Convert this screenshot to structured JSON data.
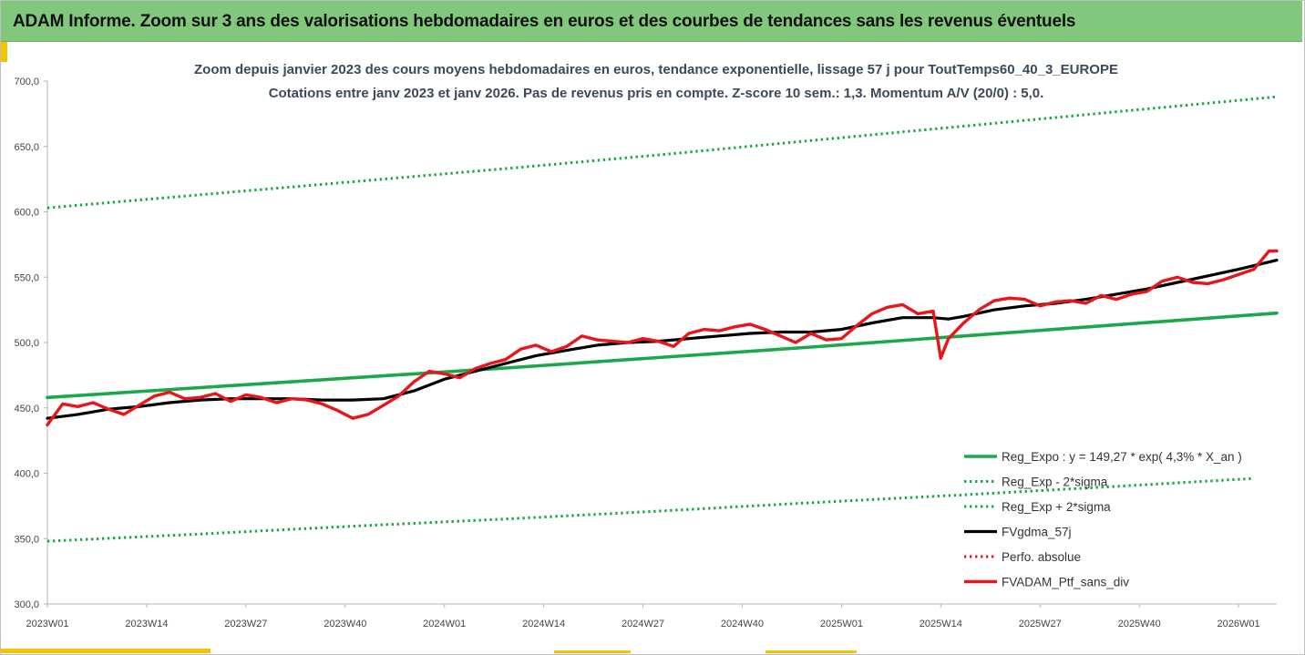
{
  "banner": {
    "title": "ADAM Informe. Zoom sur 3 ans des valorisations hebdomadaires en euros et des courbes de tendances sans les revenus éventuels"
  },
  "colors": {
    "banner_bg": "#82c87c",
    "accent_gold": "#f5c400",
    "reg_green": "#1aa84a",
    "black": "#000000",
    "red": "#e8161b"
  },
  "chart_data": {
    "type": "line",
    "title_line1": "Zoom depuis janvier 2023 des cours moyens hebdomadaires  en euros, tendance exponentielle, lissage 57 j pour ToutTemps60_40_3_EUROPE",
    "title_line2": "Cotations entre janv 2023 et janv 2026. Pas de revenus pris en compte. Z-score 10 sem.: 1,3. Momentum  A/V (20/0) : 5,0.",
    "ylim": [
      300,
      700
    ],
    "yticks": [
      "300,0",
      "350,0",
      "400,0",
      "450,0",
      "500,0",
      "550,0",
      "600,0",
      "650,0",
      "700,0"
    ],
    "ytick_values": [
      300,
      350,
      400,
      450,
      500,
      550,
      600,
      650,
      700
    ],
    "xlim": [
      0,
      161
    ],
    "xticks": [
      "2023W01",
      "2023W14",
      "2023W27",
      "2023W40",
      "2024W01",
      "2024W14",
      "2024W27",
      "2024W40",
      "2025W01",
      "2025W14",
      "2025W27",
      "2025W40",
      "2026W01"
    ],
    "xtick_positions": [
      0,
      13,
      26,
      39,
      52,
      65,
      78,
      91,
      104,
      117,
      130,
      143,
      156
    ],
    "series": [
      {
        "name": "Reg_Expo : y = 149,27 * exp( 4,3% *  X_an )",
        "style": "solid",
        "color": "#1aa84a",
        "x": [
          0,
          20,
          40,
          60,
          80,
          100,
          120,
          140,
          161
        ],
        "values": [
          458,
          465.5,
          473,
          480.5,
          488.5,
          496.5,
          505,
          513.5,
          522.5
        ]
      },
      {
        "name": "Reg_Exp - 2*sigma",
        "style": "dotted",
        "color": "#1aa84a",
        "x": [
          0,
          20,
          40,
          60,
          80,
          100,
          120,
          140,
          158
        ],
        "values": [
          348,
          353.5,
          359.5,
          365,
          371,
          377.5,
          383.5,
          390,
          396
        ]
      },
      {
        "name": "Reg_Exp + 2*sigma",
        "style": "dotted",
        "color": "#1aa84a",
        "x": [
          0,
          20,
          40,
          60,
          80,
          100,
          120,
          140,
          161
        ],
        "values": [
          603,
          613,
          623,
          633,
          643.5,
          654.5,
          665.5,
          676.5,
          688
        ]
      },
      {
        "name": "FVgdma_57j",
        "style": "solid",
        "color": "#000000",
        "x": [
          0,
          4,
          8,
          12,
          16,
          20,
          24,
          28,
          32,
          36,
          40,
          44,
          48,
          52,
          56,
          60,
          64,
          68,
          72,
          76,
          80,
          84,
          88,
          92,
          96,
          100,
          104,
          108,
          112,
          114,
          116,
          118,
          120,
          124,
          128,
          132,
          136,
          140,
          144,
          148,
          152,
          156,
          161
        ],
        "values": [
          442,
          445,
          449,
          451,
          454,
          456,
          457,
          457,
          457,
          456,
          456,
          457,
          463,
          472,
          478,
          484,
          490,
          494,
          498,
          500,
          501,
          503,
          505,
          507,
          508,
          508,
          510,
          515,
          519,
          519,
          519,
          518,
          520,
          525,
          528,
          530,
          533,
          537,
          541,
          546,
          551,
          556,
          563
        ]
      },
      {
        "name": "Perfo. absolue",
        "style": "dotted",
        "color": "#e8161b",
        "x": [],
        "values": []
      },
      {
        "name": "FVADAM_Ptf_sans_div",
        "style": "solid",
        "color": "#e8161b",
        "x": [
          0,
          2,
          4,
          6,
          8,
          10,
          12,
          14,
          16,
          18,
          20,
          22,
          24,
          26,
          28,
          30,
          32,
          34,
          36,
          38,
          40,
          42,
          44,
          46,
          48,
          50,
          52,
          54,
          56,
          58,
          60,
          62,
          64,
          66,
          68,
          70,
          72,
          74,
          76,
          78,
          80,
          82,
          84,
          86,
          88,
          90,
          92,
          94,
          96,
          98,
          100,
          102,
          104,
          106,
          108,
          110,
          112,
          114,
          116,
          117,
          118,
          120,
          122,
          124,
          126,
          128,
          130,
          132,
          134,
          136,
          138,
          140,
          142,
          144,
          146,
          148,
          150,
          152,
          154,
          156,
          158,
          160,
          161
        ],
        "values": [
          437,
          453,
          451,
          454,
          449,
          445,
          452,
          459,
          462,
          457,
          458,
          461,
          455,
          460,
          458,
          454,
          457,
          456,
          453,
          448,
          442,
          445,
          452,
          459,
          470,
          478,
          476,
          473,
          480,
          484,
          487,
          495,
          498,
          493,
          497,
          505,
          502,
          501,
          500,
          503,
          501,
          497,
          507,
          510,
          509,
          512,
          514,
          510,
          505,
          500,
          507,
          502,
          503,
          513,
          522,
          527,
          529,
          522,
          524,
          488,
          503,
          515,
          525,
          532,
          534,
          533,
          528,
          531,
          532,
          530,
          536,
          533,
          537,
          539,
          547,
          550,
          546,
          545,
          548,
          552,
          556,
          570,
          570
        ]
      }
    ]
  },
  "legend": {
    "items": [
      "Reg_Expo : y = 149,27 * exp( 4,3% *  X_an )",
      "Reg_Exp - 2*sigma",
      "Reg_Exp + 2*sigma",
      "FVgdma_57j",
      "Perfo. absolue",
      "FVADAM_Ptf_sans_div"
    ]
  }
}
